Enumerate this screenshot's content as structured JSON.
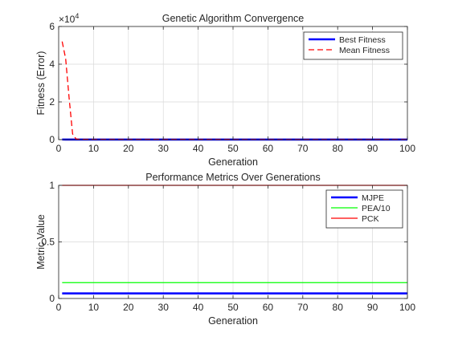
{
  "chart_data": [
    {
      "type": "line",
      "title": "Genetic Algorithm Convergence",
      "xlabel": "Generation",
      "ylabel": "Fitness (Error)",
      "xlim": [
        0,
        100
      ],
      "ylim": [
        0,
        60000
      ],
      "xticks": [
        0,
        10,
        20,
        30,
        40,
        50,
        60,
        70,
        80,
        90,
        100
      ],
      "yticks": [
        0,
        2,
        4,
        6
      ],
      "y_exponent_label": "×10",
      "y_exponent_power": "4",
      "y_multiplier": 10000,
      "grid": true,
      "legend_position": "top-right",
      "series": [
        {
          "name": "Best Fitness",
          "color": "#0000ff",
          "style": "solid",
          "x": [
            1,
            2,
            3,
            4,
            5,
            10,
            20,
            30,
            40,
            50,
            60,
            70,
            80,
            90,
            100
          ],
          "y": [
            50,
            45,
            40,
            35,
            30,
            25,
            20,
            18,
            16,
            15,
            14,
            13,
            12,
            11,
            10
          ]
        },
        {
          "name": "Mean Fitness",
          "color": "#ff0000",
          "style": "dashed",
          "x": [
            1,
            2,
            3,
            4,
            5,
            6,
            10,
            20,
            30,
            40,
            50,
            60,
            70,
            80,
            90,
            100
          ],
          "y": [
            52000,
            43000,
            22000,
            3000,
            300,
            150,
            120,
            100,
            90,
            80,
            70,
            60,
            50,
            45,
            40,
            40
          ]
        }
      ]
    },
    {
      "type": "line",
      "title": "Performance Metrics Over Generations",
      "xlabel": "Generation",
      "ylabel": "Metric Value",
      "xlim": [
        0,
        100
      ],
      "ylim": [
        0,
        1
      ],
      "xticks": [
        0,
        10,
        20,
        30,
        40,
        50,
        60,
        70,
        80,
        90,
        100
      ],
      "yticks": [
        0,
        0.5,
        1
      ],
      "grid": true,
      "legend_position": "top-right",
      "series": [
        {
          "name": "MJPE",
          "color": "#0000ff",
          "style": "solid",
          "x": [
            1,
            100
          ],
          "y": [
            0.045,
            0.045
          ]
        },
        {
          "name": "PEA/10",
          "color": "#00ff00",
          "style": "solid",
          "x": [
            1,
            100
          ],
          "y": [
            0.14,
            0.14
          ]
        },
        {
          "name": "PCK",
          "color": "#ff0000",
          "style": "solid",
          "x": [
            1,
            100
          ],
          "y": [
            1,
            1
          ]
        }
      ]
    }
  ]
}
